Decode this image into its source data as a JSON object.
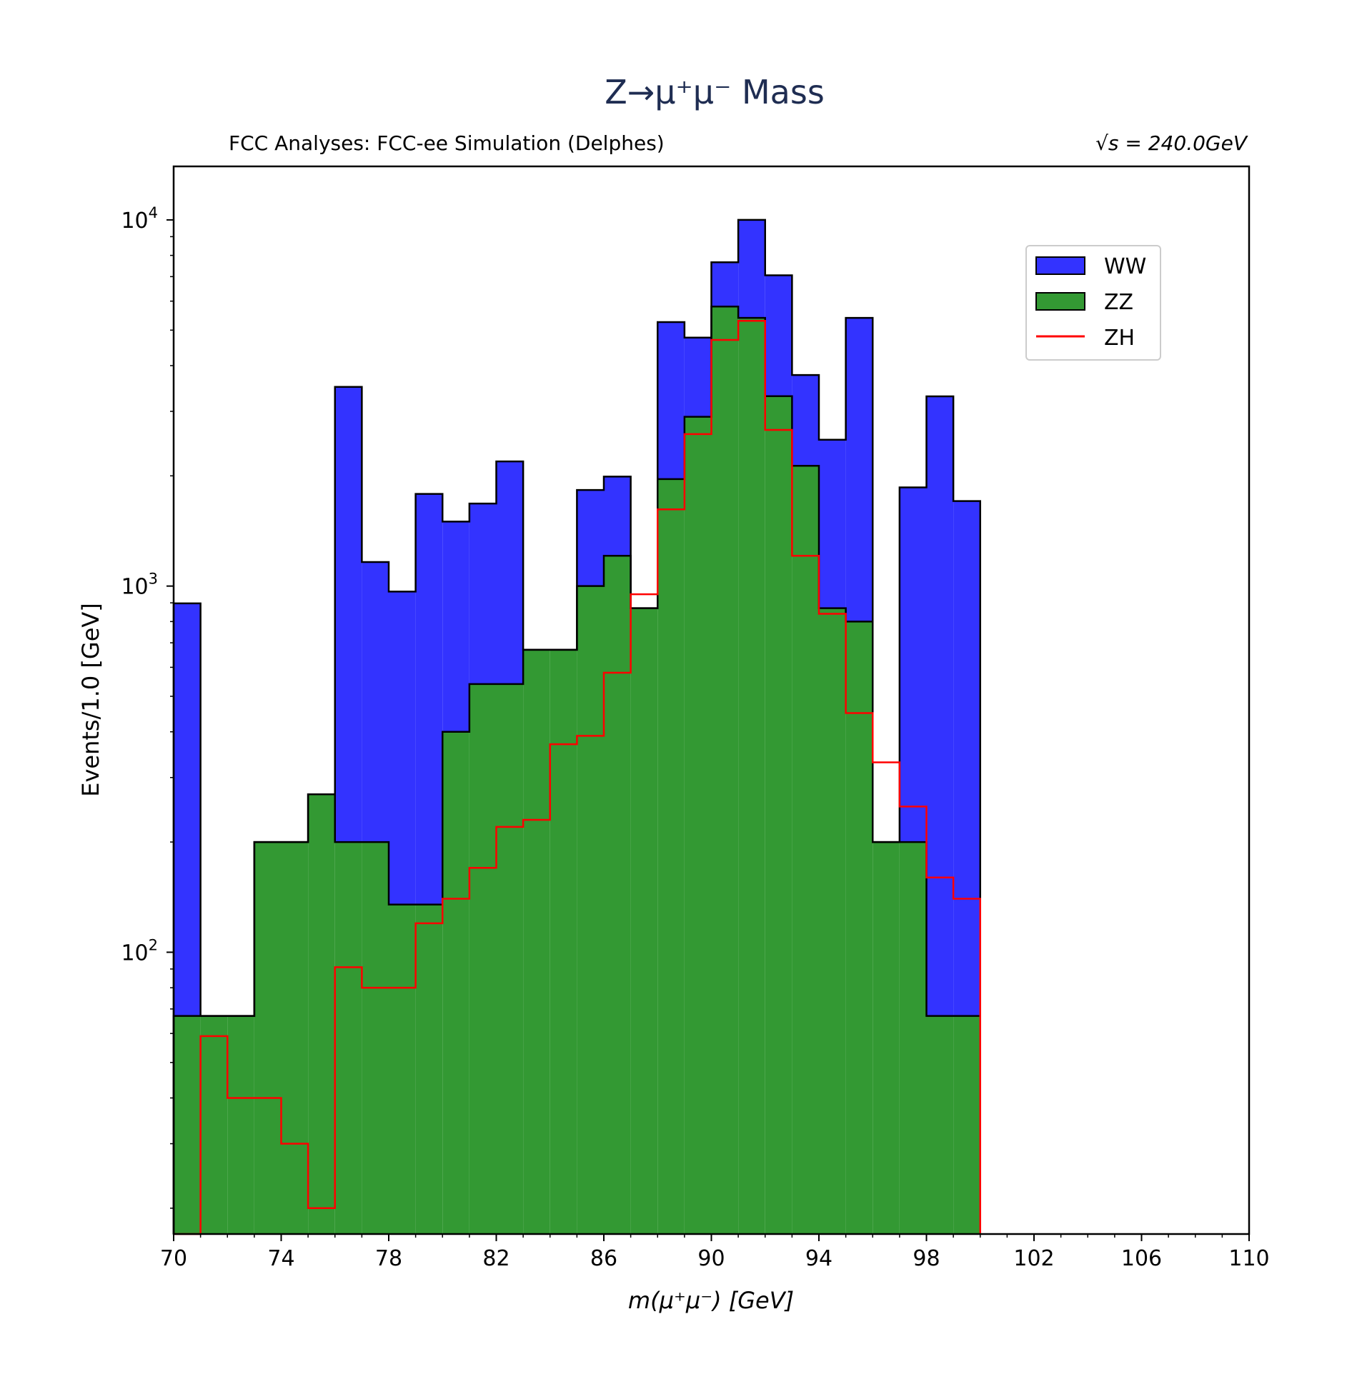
{
  "chart_data": {
    "type": "bar",
    "title": "Z→μ⁺μ⁻ Mass",
    "subtitle_left": "FCC Analyses: FCC-ee Simulation (Delphes)",
    "subtitle_right": "√s = 240.0GeV",
    "xlabel": "m(μ⁺μ⁻) [GeV]",
    "ylabel": "Events/1.0 [GeV]",
    "xlim": [
      70,
      110
    ],
    "ylim": [
      17,
      14000
    ],
    "yscale": "log",
    "bin_width": 1.0,
    "x_ticks": [
      70,
      74,
      78,
      82,
      86,
      90,
      94,
      98,
      102,
      106,
      110
    ],
    "x_tick_labels": [
      "70",
      "74",
      "78",
      "82",
      "86",
      "90",
      "94",
      "98",
      "102",
      "106",
      "110"
    ],
    "y_ticks": [
      {
        "value": 100,
        "base": "10",
        "exp": "2"
      },
      {
        "value": 1000,
        "base": "10",
        "exp": "3"
      },
      {
        "value": 10000,
        "base": "10",
        "exp": "4"
      }
    ],
    "bin_edges": [
      70,
      71,
      72,
      73,
      74,
      75,
      76,
      77,
      78,
      79,
      80,
      81,
      82,
      83,
      84,
      85,
      86,
      87,
      88,
      89,
      90,
      91,
      92,
      93,
      94,
      95,
      96,
      97,
      98,
      99,
      100
    ],
    "legend_position": "upper right",
    "series": [
      {
        "name": "WW",
        "kind": "stacked-fill",
        "color": "#3333ff",
        "values": [
          830,
          0,
          0,
          0,
          0,
          0,
          3300,
          963,
          831,
          1650,
          1100,
          1140,
          1650,
          0,
          0,
          830,
          780,
          0,
          3300,
          1870,
          1860,
          4600,
          3760,
          1640,
          1640,
          4600,
          0,
          1660,
          3230,
          1640
        ]
      },
      {
        "name": "ZZ",
        "kind": "stacked-fill",
        "color": "#339933",
        "values": [
          67,
          67,
          67,
          200,
          200,
          270,
          200,
          200,
          135,
          135,
          400,
          540,
          540,
          670,
          670,
          1000,
          1210,
          870,
          1960,
          2900,
          5800,
          5400,
          3300,
          2130,
          870,
          800,
          200,
          200,
          67,
          67
        ]
      },
      {
        "name": "ZH",
        "kind": "step",
        "color": "#ff0000",
        "values": [
          0,
          59,
          40,
          40,
          30,
          20,
          91,
          80,
          80,
          120,
          140,
          170,
          220,
          230,
          370,
          390,
          580,
          950,
          1620,
          2600,
          4700,
          5300,
          2670,
          1210,
          840,
          450,
          330,
          250,
          160,
          140
        ]
      }
    ]
  }
}
